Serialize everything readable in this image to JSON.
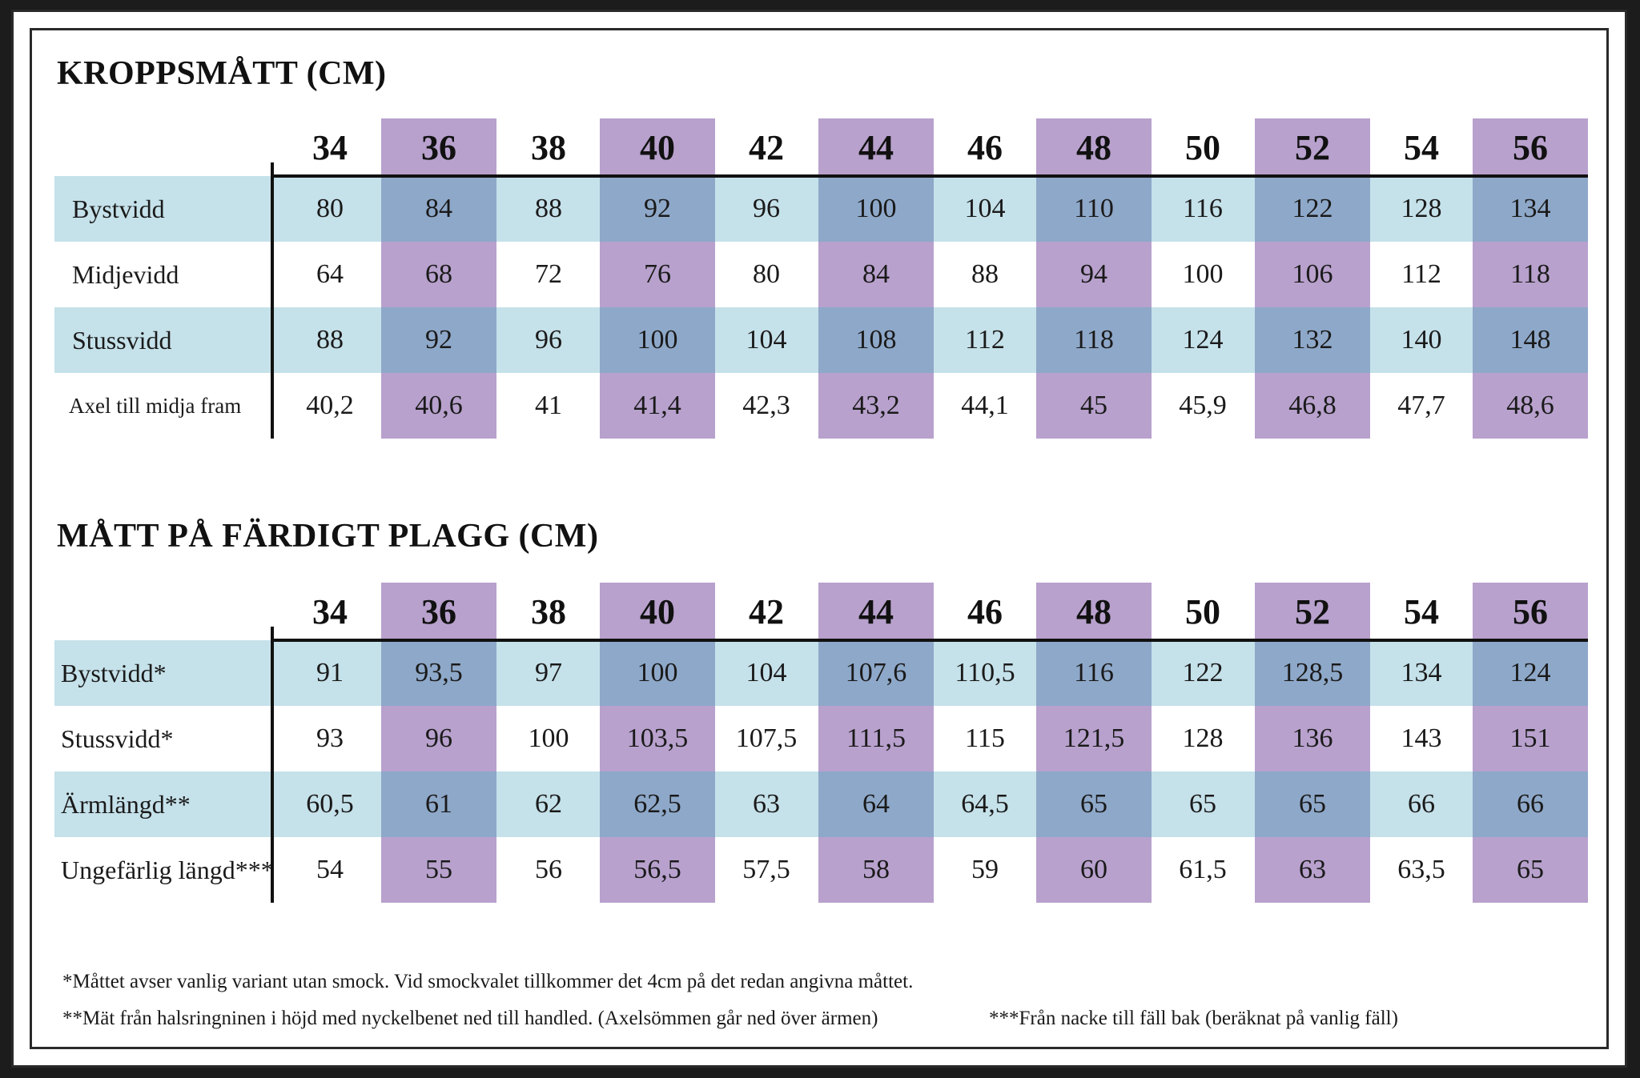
{
  "body_table": {
    "title": "KROPPSMÅTT (CM)",
    "sizes": [
      "34",
      "36",
      "38",
      "40",
      "42",
      "44",
      "46",
      "48",
      "50",
      "52",
      "54",
      "56"
    ],
    "rows": [
      {
        "label": "Bystvidd",
        "values": [
          "80",
          "84",
          "88",
          "92",
          "96",
          "100",
          "104",
          "110",
          "116",
          "122",
          "128",
          "134"
        ]
      },
      {
        "label": "Midjevidd",
        "values": [
          "64",
          "68",
          "72",
          "76",
          "80",
          "84",
          "88",
          "94",
          "100",
          "106",
          "112",
          "118"
        ]
      },
      {
        "label": "Stussvidd",
        "values": [
          "88",
          "92",
          "96",
          "100",
          "104",
          "108",
          "112",
          "118",
          "124",
          "132",
          "140",
          "148"
        ]
      },
      {
        "label": "Axel till midja fram",
        "values": [
          "40,2",
          "40,6",
          "41",
          "41,4",
          "42,3",
          "43,2",
          "44,1",
          "45",
          "45,9",
          "46,8",
          "47,7",
          "48,6"
        ]
      }
    ]
  },
  "garment_table": {
    "title": "MÅTT PÅ FÄRDIGT PLAGG (CM)",
    "sizes": [
      "34",
      "36",
      "38",
      "40",
      "42",
      "44",
      "46",
      "48",
      "50",
      "52",
      "54",
      "56"
    ],
    "rows": [
      {
        "label": "Bystvidd*",
        "values": [
          "91",
          "93,5",
          "97",
          "100",
          "104",
          "107,6",
          "110,5",
          "116",
          "122",
          "128,5",
          "134",
          "124"
        ]
      },
      {
        "label": "Stussvidd*",
        "values": [
          "93",
          "96",
          "100",
          "103,5",
          "107,5",
          "111,5",
          "115",
          "121,5",
          "128",
          "136",
          "143",
          "151"
        ]
      },
      {
        "label": "Ärmlängd**",
        "values": [
          "60,5",
          "61",
          "62",
          "62,5",
          "63",
          "64",
          "64,5",
          "65",
          "65",
          "65",
          "66",
          "66"
        ]
      },
      {
        "label": "Ungefärlig längd***",
        "values": [
          "54",
          "55",
          "56",
          "56,5",
          "57,5",
          "58",
          "59",
          "60",
          "61,5",
          "63",
          "63,5",
          "65"
        ]
      }
    ]
  },
  "footnotes": {
    "note1": "*Måttet avser vanlig variant utan smock. Vid smockvalet tillkommer det 4cm på det redan angivna måttet.",
    "note2": "**Mät från halsringninen i höjd med nyckelbenet ned till handled. (Axelsömmen går ned över ärmen)",
    "note3": "***Från nacke till fäll bak (beräknat på vanlig fäll)"
  },
  "colors": {
    "purple_band": "#b8a1cd",
    "blue_row": "#c5e1ea",
    "overlap": "#8ea8c9"
  }
}
